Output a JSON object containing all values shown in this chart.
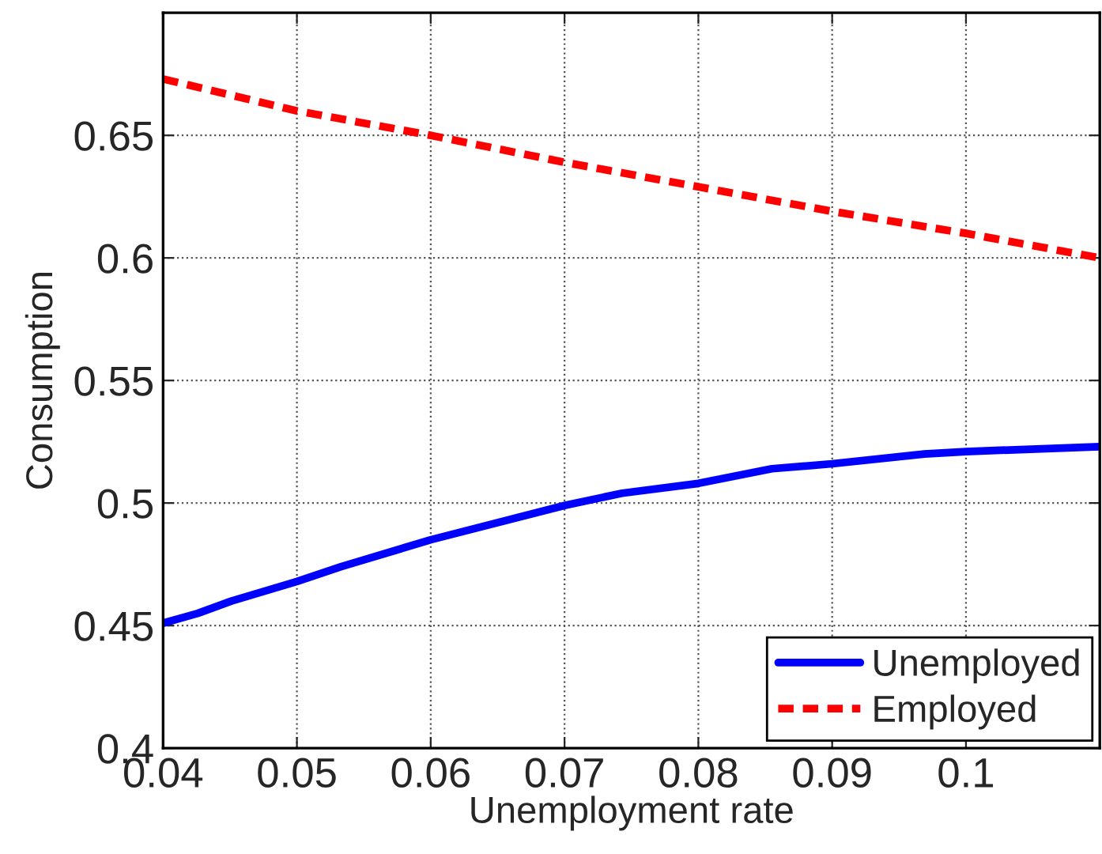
{
  "chart_data": {
    "type": "line",
    "xlabel": "Unemployment rate",
    "ylabel": "Consumption",
    "xlim": [
      0.04,
      0.11
    ],
    "xticks": [
      0.04,
      0.05,
      0.06,
      0.07,
      0.08,
      0.09,
      0.1
    ],
    "ylim": [
      0.4,
      0.7
    ],
    "yticks": [
      0.4,
      0.45,
      0.5,
      0.55,
      0.6,
      0.65
    ],
    "grid": true,
    "legend": "bottom right",
    "series": [
      {
        "name": "Unemployed",
        "color": "#0000ff",
        "line_style": "solid",
        "x": [
          0.04,
          0.0426,
          0.0451,
          0.05,
          0.0533,
          0.06,
          0.07,
          0.0743,
          0.08,
          0.0855,
          0.09,
          0.0969,
          0.1,
          0.11
        ],
        "values": [
          0.451,
          0.455,
          0.46,
          0.468,
          0.474,
          0.485,
          0.499,
          0.504,
          0.508,
          0.514,
          0.516,
          0.52,
          0.521,
          0.523
        ]
      },
      {
        "name": "Employed",
        "color": "#ff0000",
        "line_style": "dashed",
        "x": [
          0.04,
          0.05,
          0.06,
          0.07,
          0.08,
          0.09,
          0.1,
          0.11
        ],
        "values": [
          0.673,
          0.66,
          0.65,
          0.639,
          0.629,
          0.619,
          0.61,
          0.6
        ]
      }
    ]
  }
}
